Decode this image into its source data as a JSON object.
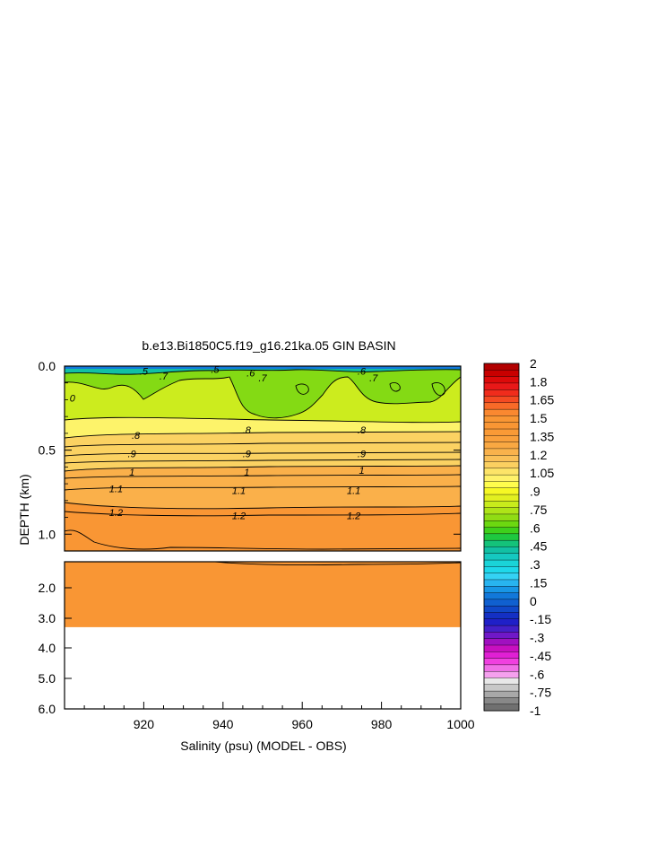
{
  "chart_data": {
    "type": "heatmap",
    "title": "b.e13.Bi1850C5.f19_g16.21ka.05 GIN BASIN",
    "xlabel": "Salinity (psu) (MODEL - OBS)",
    "ylabel": "DEPTH (km)",
    "xlim": [
      900,
      1000
    ],
    "x_ticks": [
      "920",
      "940",
      "960",
      "980",
      "1000"
    ],
    "upper_panel": {
      "ylim": [
        0.0,
        1.1
      ],
      "y_ticks": [
        "0.0",
        "0.5",
        "1.0"
      ]
    },
    "lower_panel": {
      "ylim": [
        1.1,
        6.0
      ],
      "y_ticks": [
        "2.0",
        "3.0",
        "4.0",
        "5.0",
        "6.0"
      ],
      "data_bottom_depth": 3.3
    },
    "contour_levels_labeled": [
      {
        "label": ".5",
        "x": 920,
        "depth": 0.03
      },
      {
        "label": ".7",
        "x": 925,
        "depth": 0.06
      },
      {
        "label": ".5",
        "x": 938,
        "depth": 0.02
      },
      {
        "label": ".6",
        "x": 947,
        "depth": 0.04
      },
      {
        "label": ".7",
        "x": 950,
        "depth": 0.07
      },
      {
        "label": ".6",
        "x": 975,
        "depth": 0.03
      },
      {
        "label": ".7",
        "x": 978,
        "depth": 0.07
      },
      {
        "label": "0",
        "x": 902,
        "depth": 0.19
      },
      {
        "label": ".8",
        "x": 918,
        "depth": 0.41
      },
      {
        "label": ".8",
        "x": 946,
        "depth": 0.38
      },
      {
        "label": ".8",
        "x": 975,
        "depth": 0.38
      },
      {
        "label": ".9",
        "x": 917,
        "depth": 0.52
      },
      {
        "label": ".9",
        "x": 946,
        "depth": 0.52
      },
      {
        "label": ".9",
        "x": 975,
        "depth": 0.52
      },
      {
        "label": "1",
        "x": 917,
        "depth": 0.63
      },
      {
        "label": "1",
        "x": 946,
        "depth": 0.63
      },
      {
        "label": "1",
        "x": 975,
        "depth": 0.62
      },
      {
        "label": "1.1",
        "x": 913,
        "depth": 0.73
      },
      {
        "label": "1.1",
        "x": 944,
        "depth": 0.74
      },
      {
        "label": "1.1",
        "x": 973,
        "depth": 0.74
      },
      {
        "label": "1.2",
        "x": 913,
        "depth": 0.87
      },
      {
        "label": "1.2",
        "x": 944,
        "depth": 0.89
      },
      {
        "label": "1.2",
        "x": 973,
        "depth": 0.89
      }
    ],
    "depth_profile": [
      {
        "depth": 0.0,
        "value": 0.5
      },
      {
        "depth": 0.05,
        "value": 0.7
      },
      {
        "depth": 0.3,
        "value": 0.72
      },
      {
        "depth": 0.4,
        "value": 0.8
      },
      {
        "depth": 0.5,
        "value": 0.9
      },
      {
        "depth": 0.62,
        "value": 1.0
      },
      {
        "depth": 0.74,
        "value": 1.1
      },
      {
        "depth": 0.88,
        "value": 1.2
      },
      {
        "depth": 1.1,
        "value": 1.3
      },
      {
        "depth": 3.3,
        "value": 1.3
      }
    ],
    "colorbar": {
      "labels": [
        "2",
        "1.8",
        "1.65",
        "1.5",
        "1.35",
        "1.2",
        "1.05",
        ".9",
        ".75",
        ".6",
        ".45",
        ".3",
        ".15",
        "0",
        "-.15",
        "-.3",
        "-.45",
        "-.6",
        "-.75",
        "-1"
      ],
      "colors": [
        "#b20000",
        "#c80000",
        "#dc0a0a",
        "#e81818",
        "#f02c1c",
        "#f44a22",
        "#f86a28",
        "#fa8830",
        "#f99634",
        "#f99634",
        "#f99a36",
        "#f9a03c",
        "#f9a842",
        "#f9b24c",
        "#fac058",
        "#fbd060",
        "#fde468",
        "#fff26a",
        "#fffd4c",
        "#f6f824",
        "#e2f020",
        "#c8ec1c",
        "#aee418",
        "#90dc14",
        "#6cd810",
        "#3ed01c",
        "#1ec840",
        "#14c27a",
        "#12c0a4",
        "#16c8c0",
        "#1ad4d8",
        "#1ed8ea",
        "#34d2f4",
        "#28b4f0",
        "#1896e6",
        "#1278da",
        "#1060d0",
        "#1048c8",
        "#1430c4",
        "#2020c8",
        "#4420c8",
        "#7018c8",
        "#a010c0",
        "#c810c0",
        "#e020d4",
        "#f040e0",
        "#f070e8",
        "#f5a0ee",
        "#e8e8e8",
        "#c8c8c8",
        "#a8a8a8",
        "#888888",
        "#707070"
      ]
    }
  }
}
